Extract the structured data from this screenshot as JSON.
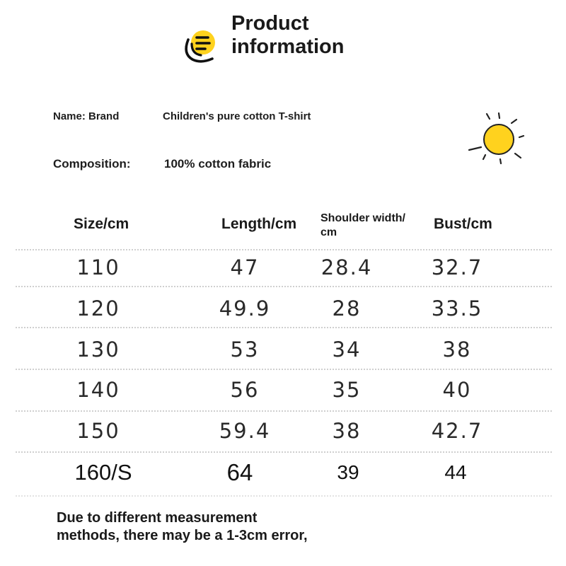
{
  "header": {
    "title_line1": "Product",
    "title_line2": "information",
    "icon": "document-list-icon"
  },
  "info": {
    "name_label": "Name: Brand",
    "name_value": "Children's pure cotton T-shirt",
    "composition_label": "Composition:",
    "composition_value": "100% cotton fabric",
    "decoration_icon": "sun-icon"
  },
  "table": {
    "headers": {
      "size": "Size/cm",
      "length": "Length/cm",
      "shoulder_line1": "Shoulder width/",
      "shoulder_line2": "cm",
      "bust": "Bust/cm"
    },
    "rows": [
      {
        "size": "110",
        "length": "47",
        "shoulder": "28.4",
        "bust": "32.7"
      },
      {
        "size": "120",
        "length": "49.9",
        "shoulder": "28",
        "bust": "33.5"
      },
      {
        "size": "130",
        "length": "53",
        "shoulder": "34",
        "bust": "38"
      },
      {
        "size": "140",
        "length": "56",
        "shoulder": "35",
        "bust": "40"
      },
      {
        "size": "150",
        "length": "59.4",
        "shoulder": "38",
        "bust": "42.7"
      },
      {
        "size": "160/S",
        "length": "64",
        "shoulder": "39",
        "bust": "44"
      }
    ]
  },
  "note": {
    "line1": "Due to different measurement",
    "line2": "methods, there may be a 1-3cm error,"
  },
  "colors": {
    "accent_yellow": "#FFD21E",
    "text": "#1a1a1a",
    "divider": "#cfcfcf",
    "background": "#ffffff"
  }
}
